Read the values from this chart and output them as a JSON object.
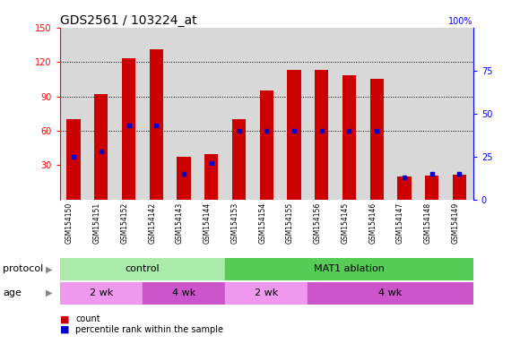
{
  "title": "GDS2561 / 103224_at",
  "samples": [
    "GSM154150",
    "GSM154151",
    "GSM154152",
    "GSM154142",
    "GSM154143",
    "GSM154144",
    "GSM154153",
    "GSM154154",
    "GSM154155",
    "GSM154156",
    "GSM154145",
    "GSM154146",
    "GSM154147",
    "GSM154148",
    "GSM154149"
  ],
  "bar_heights": [
    70,
    92,
    123,
    131,
    37,
    40,
    70,
    95,
    113,
    113,
    108,
    105,
    20,
    21,
    22
  ],
  "pct_ranks": [
    25,
    28,
    43,
    43,
    15,
    21,
    40,
    40,
    40,
    40,
    40,
    40,
    13,
    15,
    15
  ],
  "ylim_left": [
    0,
    150
  ],
  "ylim_right": [
    0,
    100
  ],
  "yticks_left": [
    30,
    60,
    90,
    120,
    150
  ],
  "yticks_right": [
    0,
    25,
    50,
    75,
    100
  ],
  "bar_color": "#cc0000",
  "marker_color": "#0000cc",
  "bg_plot": "#d8d8d8",
  "bg_figure": "#ffffff",
  "protocol_control_label": "control",
  "protocol_mat1_label": "MAT1 ablation",
  "age_2wk": "2 wk",
  "age_4wk": "4 wk",
  "protocol_row_label": "protocol",
  "age_row_label": "age",
  "legend_count": "count",
  "legend_pct": "percentile rank within the sample",
  "title_fontsize": 10,
  "tick_fontsize": 7,
  "label_fontsize": 8,
  "ctrl_color_light": "#aaeaaa",
  "ctrl_color_dark": "#55cc55",
  "age_light": "#ee99ee",
  "age_dark": "#cc55cc"
}
